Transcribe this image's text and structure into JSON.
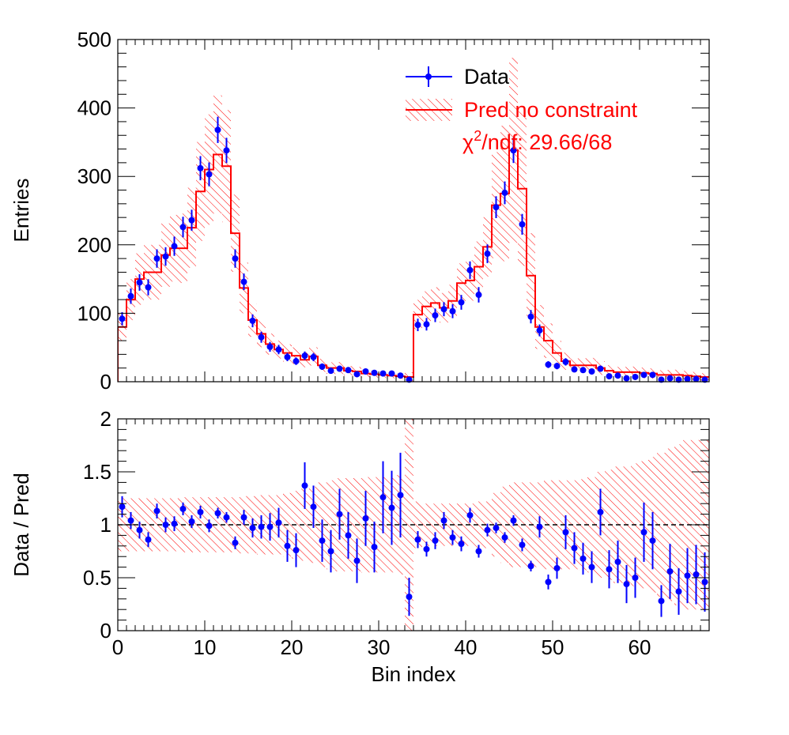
{
  "chart_data": [
    {
      "panel": "top",
      "type": "histogram",
      "xlabel": "",
      "ylabel": "Entries",
      "xlim": [
        0,
        68
      ],
      "ylim": [
        0,
        500
      ],
      "xticks": [
        0,
        10,
        20,
        30,
        40,
        50,
        60
      ],
      "yticks": [
        0,
        100,
        200,
        300,
        400,
        500
      ],
      "ytick_labels": [
        "0",
        "100",
        "200",
        "300",
        "400",
        "500"
      ],
      "legend": {
        "placement": "top-right",
        "entries": [
          {
            "label": "Data",
            "color": "#0000ff"
          },
          {
            "label": "Pred no constraint",
            "color": "#ff0000"
          }
        ],
        "chi2_label": "χ²/ndf: 29.66/68",
        "chi2_prefix": "χ",
        "chi2_sup": "2",
        "chi2_suffix": "/ndf: 29.66/68"
      },
      "series": [
        {
          "name": "Data",
          "kind": "points-with-errors",
          "color": "#0000ff",
          "y": [
            92,
            125,
            145,
            138,
            180,
            183,
            198,
            226,
            236,
            312,
            303,
            368,
            338,
            180,
            146,
            89,
            65,
            51,
            47,
            36,
            30,
            38,
            36,
            22,
            16,
            19,
            17,
            11,
            15,
            13,
            12,
            12,
            9,
            3,
            83,
            84,
            97,
            106,
            103,
            116,
            163,
            127,
            187,
            255,
            276,
            338,
            230,
            95,
            75,
            25,
            23,
            29,
            18,
            17,
            15,
            19,
            8,
            9,
            5,
            7,
            10,
            10,
            3,
            5,
            3,
            4,
            4,
            3
          ]
        },
        {
          "name": "Pred no constraint",
          "kind": "step-with-uncertainty-band",
          "color": "#ff0000",
          "y": [
            80,
            120,
            150,
            160,
            160,
            185,
            195,
            195,
            225,
            278,
            310,
            332,
            315,
            217,
            137,
            90,
            70,
            55,
            47,
            42,
            38,
            32,
            37,
            24,
            20,
            20,
            16,
            15,
            12,
            11,
            10,
            9,
            8,
            7,
            98,
            110,
            115,
            108,
            118,
            144,
            148,
            168,
            197,
            258,
            275,
            338,
            282,
            155,
            80,
            60,
            42,
            30,
            24,
            24,
            24,
            20,
            16,
            14,
            14,
            14,
            13,
            12,
            10,
            10,
            10,
            9,
            8,
            7
          ],
          "band_rel": [
            0.25,
            0.25,
            0.25,
            0.25,
            0.25,
            0.25,
            0.25,
            0.26,
            0.26,
            0.26,
            0.26,
            0.26,
            0.26,
            0.26,
            0.27,
            0.27,
            0.28,
            0.28,
            0.28,
            0.3,
            0.32,
            0.34,
            0.36,
            0.4,
            0.42,
            0.44,
            0.44,
            0.44,
            0.45,
            0.45,
            0.45,
            0.45,
            0.47,
            1.0,
            0.22,
            0.2,
            0.2,
            0.2,
            0.2,
            0.2,
            0.2,
            0.22,
            0.22,
            0.3,
            0.36,
            0.4,
            0.4,
            0.4,
            0.4,
            0.42,
            0.42,
            0.42,
            0.42,
            0.43,
            0.45,
            0.5,
            0.52,
            0.55,
            0.55,
            0.58,
            0.6,
            0.64,
            0.68,
            0.72,
            0.76,
            0.8,
            0.8,
            0.8
          ]
        }
      ]
    },
    {
      "panel": "bottom",
      "type": "ratio",
      "xlabel": "Bin index",
      "ylabel": "Data / Pred",
      "xlim": [
        0,
        68
      ],
      "ylim": [
        0,
        2
      ],
      "xticks": [
        0,
        10,
        20,
        30,
        40,
        50,
        60
      ],
      "xtick_labels": [
        "0",
        "10",
        "20",
        "30",
        "40",
        "50",
        "60"
      ],
      "yticks": [
        0,
        0.5,
        1,
        1.5,
        2
      ],
      "ytick_labels": [
        "0",
        "0.5",
        "1",
        "1.5",
        "2"
      ],
      "reference_line": 1,
      "series": [
        {
          "name": "Data / Pred",
          "kind": "points-with-errors",
          "color": "#0000ff",
          "y": [
            1.17,
            1.04,
            0.95,
            0.86,
            1.13,
            1.0,
            1.01,
            1.15,
            1.03,
            1.12,
            0.99,
            1.11,
            1.07,
            0.83,
            1.07,
            0.97,
            0.98,
            0.98,
            1.02,
            0.8,
            0.76,
            1.37,
            1.17,
            0.85,
            0.75,
            1.1,
            0.9,
            0.66,
            1.06,
            0.79,
            1.26,
            1.16,
            1.28,
            0.32,
            0.86,
            0.77,
            0.85,
            1.04,
            0.88,
            0.82,
            1.09,
            0.75,
            0.95,
            0.97,
            0.88,
            1.04,
            0.81,
            0.61,
            0.98,
            0.46,
            0.59,
            0.93,
            0.78,
            0.68,
            0.6,
            1.12,
            0.58,
            0.65,
            0.44,
            0.5,
            0.93,
            0.85,
            0.28,
            0.56,
            0.37,
            0.52,
            0.53,
            0.46
          ],
          "err": [
            0.1,
            0.08,
            0.08,
            0.07,
            0.07,
            0.07,
            0.07,
            0.06,
            0.06,
            0.06,
            0.06,
            0.05,
            0.05,
            0.06,
            0.07,
            0.09,
            0.11,
            0.13,
            0.14,
            0.15,
            0.16,
            0.22,
            0.2,
            0.2,
            0.2,
            0.24,
            0.22,
            0.21,
            0.26,
            0.24,
            0.34,
            0.35,
            0.4,
            0.18,
            0.08,
            0.07,
            0.08,
            0.08,
            0.07,
            0.07,
            0.07,
            0.06,
            0.06,
            0.05,
            0.05,
            0.05,
            0.06,
            0.05,
            0.1,
            0.07,
            0.1,
            0.16,
            0.15,
            0.15,
            0.15,
            0.22,
            0.18,
            0.2,
            0.18,
            0.19,
            0.28,
            0.27,
            0.15,
            0.26,
            0.22,
            0.26,
            0.28,
            0.28
          ]
        }
      ]
    }
  ]
}
